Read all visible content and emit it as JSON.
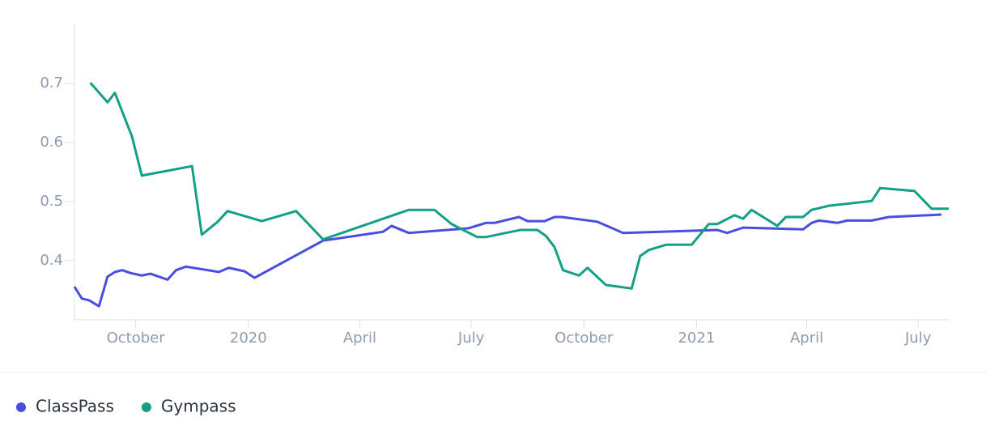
{
  "chart_data": {
    "type": "line",
    "xlim": [
      "2019-08-12",
      "2021-07-26"
    ],
    "xticks": [
      {
        "value": "2019-10-01",
        "label": "October"
      },
      {
        "value": "2020-01-01",
        "label": "2020"
      },
      {
        "value": "2020-04-01",
        "label": "April"
      },
      {
        "value": "2020-07-01",
        "label": "July"
      },
      {
        "value": "2020-10-01",
        "label": "October"
      },
      {
        "value": "2021-01-01",
        "label": "2021"
      },
      {
        "value": "2021-04-01",
        "label": "April"
      },
      {
        "value": "2021-07-01",
        "label": "July"
      }
    ],
    "ylim": [
      0.3,
      0.8
    ],
    "yticks": [
      0.4,
      0.5,
      0.6,
      0.7
    ],
    "grid": false,
    "legend": "bottom-left",
    "series": [
      {
        "name": "ClassPass",
        "color": "#4a4de0",
        "x": [
          "2019-08-12",
          "2019-08-18",
          "2019-08-24",
          "2019-09-01",
          "2019-09-08",
          "2019-09-14",
          "2019-09-20",
          "2019-09-27",
          "2019-10-06",
          "2019-10-13",
          "2019-10-27",
          "2019-11-03",
          "2019-11-11",
          "2019-12-08",
          "2019-12-16",
          "2019-12-29",
          "2020-01-06",
          "2020-03-02",
          "2020-04-20",
          "2020-04-27",
          "2020-05-11",
          "2020-06-29",
          "2020-07-13",
          "2020-07-20",
          "2020-08-09",
          "2020-08-16",
          "2020-08-30",
          "2020-09-07",
          "2020-09-13",
          "2020-10-12",
          "2020-11-02",
          "2021-01-18",
          "2021-01-26",
          "2021-02-08",
          "2021-03-29",
          "2021-04-05",
          "2021-04-11",
          "2021-04-26",
          "2021-05-04",
          "2021-05-24",
          "2021-06-07",
          "2021-07-20"
        ],
        "values": [
          0.356,
          0.336,
          0.333,
          0.323,
          0.373,
          0.381,
          0.384,
          0.379,
          0.375,
          0.378,
          0.368,
          0.384,
          0.39,
          0.381,
          0.388,
          0.382,
          0.371,
          0.434,
          0.449,
          0.459,
          0.447,
          0.455,
          0.464,
          0.464,
          0.474,
          0.467,
          0.467,
          0.474,
          0.474,
          0.466,
          0.447,
          0.452,
          0.447,
          0.456,
          0.453,
          0.464,
          0.468,
          0.464,
          0.468,
          0.468,
          0.474,
          0.478
        ]
      },
      {
        "name": "Gympass",
        "color": "#14a085",
        "x": [
          "2019-08-25",
          "2019-09-08",
          "2019-09-14",
          "2019-09-28",
          "2019-10-06",
          "2019-11-16",
          "2019-11-24",
          "2019-12-07",
          "2019-12-15",
          "2020-01-12",
          "2020-02-09",
          "2020-03-02",
          "2020-05-11",
          "2020-06-01",
          "2020-06-15",
          "2020-07-06",
          "2020-07-13",
          "2020-08-10",
          "2020-08-24",
          "2020-08-31",
          "2020-09-07",
          "2020-09-14",
          "2020-09-27",
          "2020-10-04",
          "2020-10-19",
          "2020-11-09",
          "2020-11-16",
          "2020-11-23",
          "2020-12-07",
          "2020-12-28",
          "2021-01-11",
          "2021-01-18",
          "2021-02-01",
          "2021-02-08",
          "2021-02-15",
          "2021-03-08",
          "2021-03-15",
          "2021-03-29",
          "2021-04-05",
          "2021-04-19",
          "2021-05-24",
          "2021-05-31",
          "2021-06-28",
          "2021-07-12",
          "2021-07-26"
        ],
        "values": [
          0.701,
          0.668,
          0.684,
          0.61,
          0.544,
          0.56,
          0.444,
          0.466,
          0.484,
          0.467,
          0.484,
          0.436,
          0.486,
          0.486,
          0.462,
          0.44,
          0.44,
          0.452,
          0.452,
          0.442,
          0.423,
          0.384,
          0.375,
          0.388,
          0.359,
          0.353,
          0.408,
          0.418,
          0.427,
          0.427,
          0.462,
          0.462,
          0.477,
          0.471,
          0.486,
          0.459,
          0.474,
          0.474,
          0.486,
          0.493,
          0.501,
          0.523,
          0.518,
          0.488,
          0.488
        ]
      }
    ]
  }
}
